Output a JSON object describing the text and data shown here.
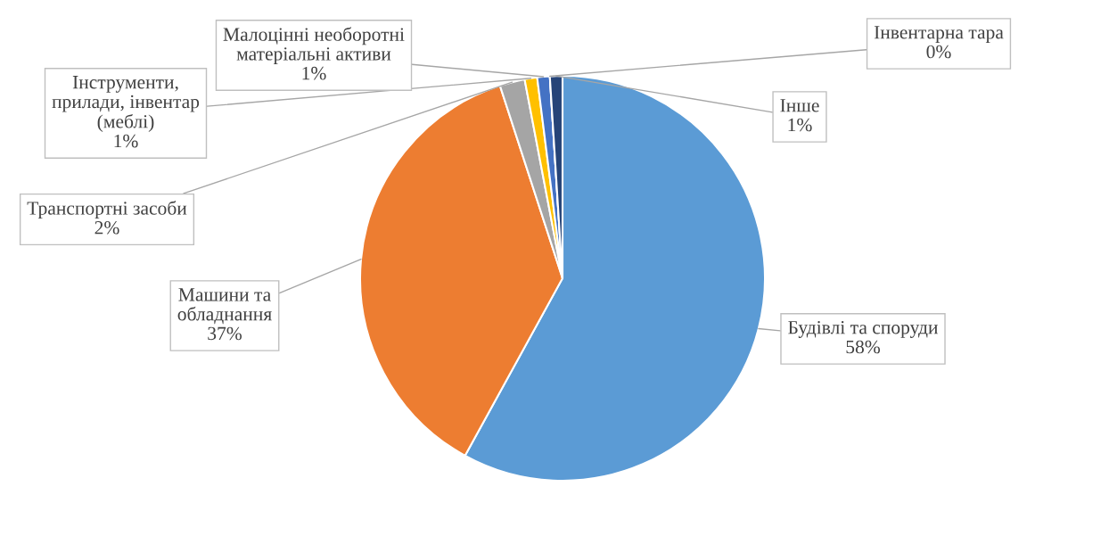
{
  "chart_data": {
    "type": "pie",
    "categories": [
      "Будівлі та споруди",
      "Машини та\nобладнання",
      "Транспортні засоби",
      "Інструменти,\nприлади, інвентар\n(меблі)",
      "Малоцінні необоротні\nматеріальні активи",
      "Інвентарна тара",
      "Інше"
    ],
    "values": [
      58,
      37,
      2,
      1,
      1,
      0,
      1
    ],
    "colors": [
      "#5b9bd5",
      "#ed7d31",
      "#a5a5a5",
      "#ffc000",
      "#4472c4",
      "#70ad47",
      "#264478"
    ],
    "value_labels": [
      "58%",
      "37%",
      "2%",
      "1%",
      "1%",
      "0%",
      "1%"
    ]
  }
}
